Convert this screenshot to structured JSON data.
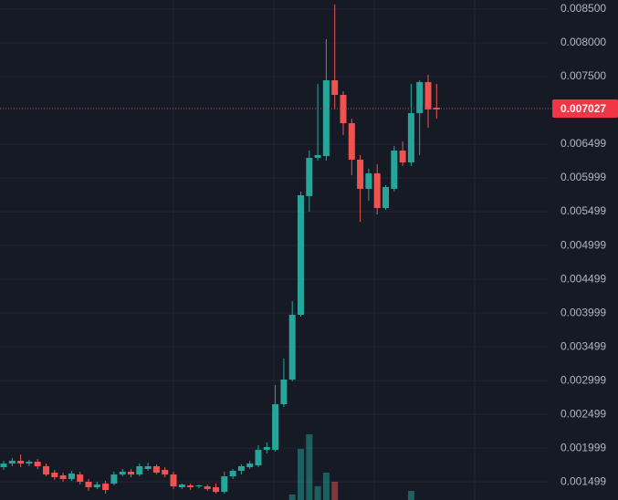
{
  "chart_data": {
    "type": "candlestick",
    "up_color": "#26a69a",
    "down_color": "#ef5350",
    "ylim": [
      0.00123,
      0.008635
    ],
    "yticks": [
      {
        "value": 0.0085,
        "label": "0.008500"
      },
      {
        "value": 0.008,
        "label": "0.008000"
      },
      {
        "value": 0.0075,
        "label": "0.007500"
      },
      0.006499,
      0.005999,
      0.005499,
      0.004999,
      0.004499,
      0.003999,
      0.003499,
      0.002999,
      0.002499,
      0.001999,
      0.001499
    ],
    "grid": true,
    "last_price": 0.007027,
    "last_price_color": "#f23645",
    "open": [
      0.001716,
      0.00177,
      0.001811,
      0.00177,
      0.001797,
      0.00173,
      0.001635,
      0.001595,
      0.001541,
      0.001608,
      0.0015,
      0.001419,
      0.001473,
      0.001473,
      0.001608,
      0.001649,
      0.001608,
      0.001689,
      0.00173,
      0.001676,
      0.001608,
      0.001419,
      0.001446,
      0.001432,
      0.001432,
      0.001419,
      0.001351,
      0.001581,
      0.001662,
      0.001716,
      0.001743,
      0.001973,
      0.001973,
      0.002649,
      0.003014,
      0.003973,
      0.00573,
      0.006297,
      0.006324,
      0.007446,
      0.00723,
      0.006811,
      0.00627,
      0.005838,
      0.006068,
      0.005554,
      0.005838,
      0.006405,
      0.00623,
      0.006959,
      0.007419,
      0.007041
    ],
    "high": [
      0.001811,
      0.001851,
      0.001905,
      0.001824,
      0.001838,
      0.00177,
      0.001676,
      0.001635,
      0.001662,
      0.001649,
      0.001541,
      0.0015,
      0.001514,
      0.001649,
      0.001689,
      0.001689,
      0.00177,
      0.001784,
      0.001757,
      0.001716,
      0.001649,
      0.001473,
      0.001473,
      0.001459,
      0.001459,
      0.001473,
      0.001649,
      0.001689,
      0.001757,
      0.001811,
      0.002041,
      0.002081,
      0.002932,
      0.003324,
      0.004176,
      0.005797,
      0.006405,
      0.007392,
      0.008054,
      0.008568,
      0.007284,
      0.006878,
      0.006338,
      0.006135,
      0.006203,
      0.005892,
      0.006473,
      0.006541,
      0.007392,
      0.007446,
      0.007527,
      0.007392
    ],
    "low": [
      0.001676,
      0.00173,
      0.001716,
      0.00173,
      0.001689,
      0.001581,
      0.001527,
      0.0015,
      0.001514,
      0.001459,
      0.001365,
      0.001392,
      0.001324,
      0.001446,
      0.001581,
      0.001568,
      0.001581,
      0.001662,
      0.001608,
      0.001568,
      0.001392,
      0.001392,
      0.001378,
      0.001405,
      0.001365,
      0.001324,
      0.001324,
      0.001541,
      0.001608,
      0.001689,
      0.001716,
      0.001919,
      0.001946,
      0.002608,
      0.002986,
      0.003946,
      0.0055,
      0.006257,
      0.006257,
      0.007014,
      0.006635,
      0.006041,
      0.005351,
      0.005662,
      0.005459,
      0.005527,
      0.005797,
      0.006176,
      0.006176,
      0.006338,
      0.006743,
      0.006878
    ],
    "close": [
      0.00177,
      0.001811,
      0.00177,
      0.001797,
      0.00173,
      0.001608,
      0.001568,
      0.001541,
      0.001622,
      0.0015,
      0.001419,
      0.001459,
      0.001378,
      0.001608,
      0.001649,
      0.001608,
      0.00173,
      0.00173,
      0.001635,
      0.001608,
      0.001432,
      0.001459,
      0.001419,
      0.001446,
      0.001392,
      0.001351,
      0.001581,
      0.001662,
      0.00173,
      0.00177,
      0.001973,
      0.002014,
      0.002649,
      0.003014,
      0.003973,
      0.005743,
      0.006297,
      0.006338,
      0.007446,
      0.00723,
      0.006811,
      0.00627,
      0.005838,
      0.006068,
      0.005554,
      0.005865,
      0.006405,
      0.00623,
      0.006959,
      0.007419,
      0.007014,
      0.007014
    ],
    "volume_lim": [
      0,
      100
    ],
    "volume": [
      null,
      null,
      null,
      null,
      null,
      null,
      null,
      null,
      null,
      null,
      null,
      null,
      null,
      null,
      null,
      null,
      null,
      null,
      null,
      null,
      null,
      null,
      null,
      null,
      null,
      null,
      null,
      null,
      null,
      null,
      null,
      null,
      null,
      null,
      7.5,
      70,
      90,
      19,
      37.5,
      25,
      null,
      null,
      null,
      null,
      null,
      null,
      null,
      null,
      12.5,
      null,
      null,
      null
    ]
  }
}
